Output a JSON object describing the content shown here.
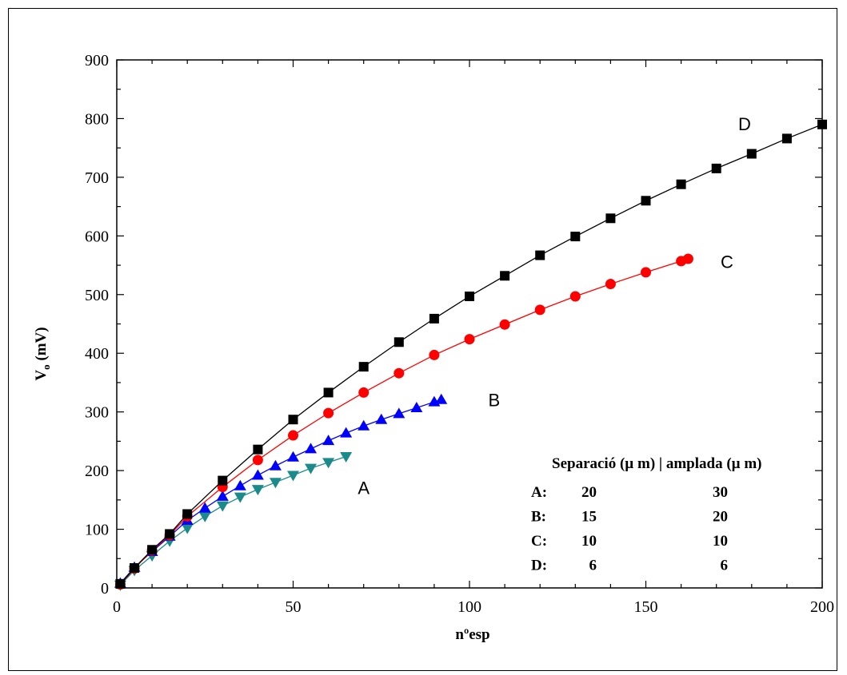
{
  "chart_data": {
    "type": "line",
    "xlabel": "nºesp",
    "ylabel": {
      "main": "V",
      "sub": "o",
      "unit": " (mV)"
    },
    "xlim": [
      0,
      200
    ],
    "ylim": [
      0,
      900
    ],
    "xticks": [
      0,
      50,
      100,
      150,
      200
    ],
    "yticks": [
      0,
      100,
      200,
      300,
      400,
      500,
      600,
      700,
      800,
      900
    ],
    "grid": false,
    "series": [
      {
        "name": "A",
        "color": "#1a8a8a",
        "marker": "triangle-down",
        "x": [
          1,
          5,
          10,
          15,
          20,
          25,
          30,
          35,
          40,
          45,
          50,
          55,
          60,
          65
        ],
        "y": [
          5,
          30,
          55,
          80,
          102,
          122,
          140,
          155,
          168,
          180,
          192,
          204,
          214,
          224
        ]
      },
      {
        "name": "B",
        "color": "#0000ff",
        "marker": "triangle-up",
        "x": [
          1,
          5,
          10,
          15,
          20,
          25,
          30,
          35,
          40,
          45,
          50,
          55,
          60,
          65,
          70,
          75,
          80,
          85,
          90,
          92
        ],
        "y": [
          8,
          35,
          62,
          88,
          115,
          136,
          156,
          174,
          192,
          208,
          223,
          237,
          251,
          264,
          276,
          287,
          297,
          307,
          317,
          321
        ]
      },
      {
        "name": "C",
        "color": "#ff0000",
        "marker": "circle",
        "x": [
          1,
          5,
          10,
          15,
          20,
          30,
          40,
          50,
          60,
          70,
          80,
          90,
          100,
          110,
          120,
          130,
          140,
          150,
          160,
          162
        ],
        "y": [
          6,
          33,
          64,
          90,
          122,
          172,
          218,
          260,
          298,
          333,
          366,
          397,
          424,
          449,
          474,
          497,
          518,
          538,
          557,
          561
        ]
      },
      {
        "name": "D",
        "color": "#000000",
        "marker": "square",
        "x": [
          1,
          5,
          10,
          15,
          20,
          30,
          40,
          50,
          60,
          70,
          80,
          90,
          100,
          110,
          120,
          130,
          140,
          150,
          160,
          170,
          180,
          190,
          200
        ],
        "y": [
          7,
          34,
          65,
          92,
          126,
          183,
          236,
          287,
          333,
          377,
          419,
          459,
          497,
          532,
          567,
          599,
          630,
          660,
          688,
          715,
          740,
          766,
          790
        ]
      }
    ],
    "annotations": [
      {
        "text": "A",
        "x": 70,
        "y": 160
      },
      {
        "text": "B",
        "x": 107,
        "y": 310
      },
      {
        "text": "C",
        "x": 173,
        "y": 545
      },
      {
        "text": "D",
        "x": 178,
        "y": 780
      }
    ],
    "table": {
      "header": "Separació (µ m) | amplada (µ m)",
      "rows": [
        {
          "label": "A:",
          "sep": "20",
          "width": "30"
        },
        {
          "label": "B:",
          "sep": "15",
          "width": "20"
        },
        {
          "label": "C:",
          "sep": "10",
          "width": "10"
        },
        {
          "label": "D:",
          "sep": "6",
          "width": "6"
        }
      ]
    }
  }
}
